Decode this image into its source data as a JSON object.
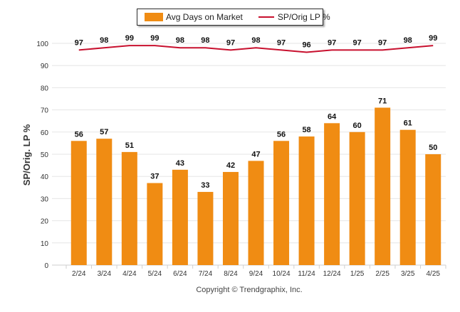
{
  "legend": {
    "bar_label": "Avg Days on Market",
    "line_label": "SP/Orig LP %"
  },
  "copyright": "Copyright © Trendgraphix, Inc.",
  "colors": {
    "bar": "#f08c13",
    "line": "#c8102e",
    "grid": "#e6e6e6"
  },
  "chart_data": {
    "type": "bar",
    "title": "",
    "xlabel": "",
    "ylabel": "SP/Orig. LP %",
    "ylim": [
      0,
      100
    ],
    "yticks": [
      0,
      10,
      20,
      30,
      40,
      50,
      60,
      70,
      80,
      90,
      100
    ],
    "grid": true,
    "legend_position": "top",
    "categories": [
      "2/24",
      "3/24",
      "4/24",
      "5/24",
      "6/24",
      "7/24",
      "8/24",
      "9/24",
      "10/24",
      "11/24",
      "12/24",
      "1/25",
      "2/25",
      "3/25",
      "4/25"
    ],
    "series": [
      {
        "name": "Avg Days on Market",
        "type": "bar",
        "values": [
          56,
          57,
          51,
          37,
          43,
          33,
          42,
          47,
          56,
          58,
          64,
          60,
          71,
          61,
          50
        ]
      },
      {
        "name": "SP/Orig LP %",
        "type": "line",
        "values": [
          97,
          98,
          99,
          99,
          98,
          98,
          97,
          98,
          97,
          96,
          97,
          97,
          97,
          98,
          99
        ]
      }
    ]
  }
}
